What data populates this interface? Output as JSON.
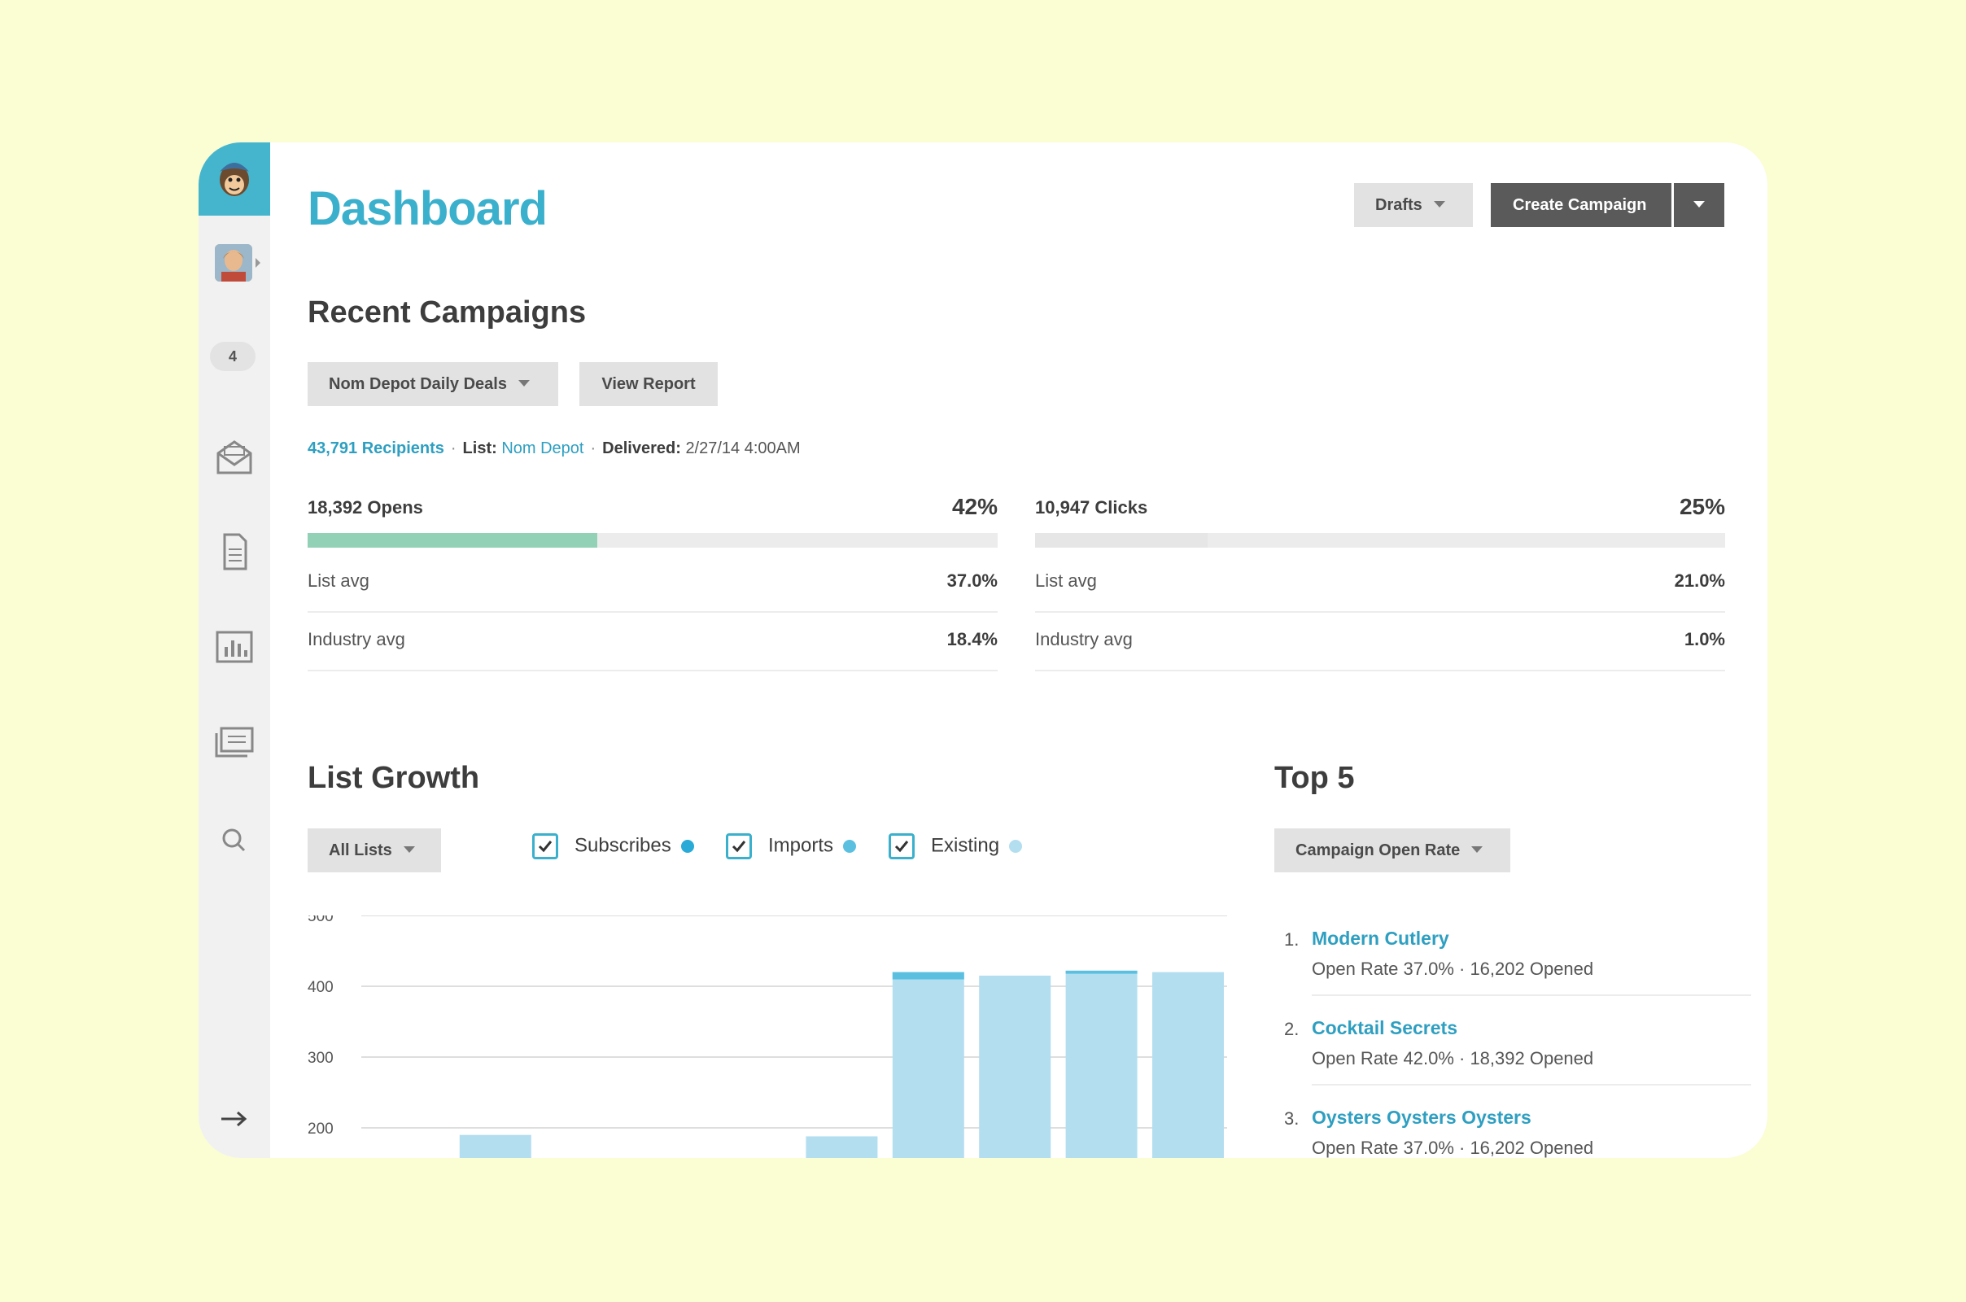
{
  "sidebar": {
    "badge_count": "4",
    "icons": [
      "monkey-logo",
      "avatar",
      "campaigns-icon",
      "templates-icon",
      "reports-icon",
      "lists-icon",
      "search-icon",
      "collapse-arrow-icon"
    ]
  },
  "header": {
    "title": "Dashboard",
    "drafts_label": "Drafts",
    "create_label": "Create Campaign"
  },
  "recent": {
    "heading": "Recent Campaigns",
    "campaign_select": "Nom Depot Daily Deals",
    "view_report": "View Report",
    "recipients": "43,791 Recipients",
    "list_label": "List:",
    "list_value": "Nom Depot",
    "delivered_label": "Delivered:",
    "delivered_value": "2/27/14 4:00AM",
    "opens": {
      "label": "18,392 Opens",
      "pct": "42%",
      "fill": 0.42,
      "list_avg_label": "List avg",
      "list_avg": "37.0%",
      "industry_avg_label": "Industry avg",
      "industry_avg": "18.4%"
    },
    "clicks": {
      "label": "10,947 Clicks",
      "pct": "25%",
      "fill": 0.25,
      "list_avg_label": "List avg",
      "list_avg": "21.0%",
      "industry_avg_label": "Industry avg",
      "industry_avg": "1.0%"
    }
  },
  "growth": {
    "heading": "List Growth",
    "list_select": "All Lists",
    "checks": [
      {
        "label": "Subscribes",
        "color": "#2aaad6"
      },
      {
        "label": "Imports",
        "color": "#5bc0e0"
      },
      {
        "label": "Existing",
        "color": "#b3def0"
      }
    ]
  },
  "chart_data": {
    "type": "bar",
    "yticks": [
      500,
      400,
      300,
      200
    ],
    "ylim": [
      200,
      500
    ],
    "values": [
      null,
      190,
      null,
      null,
      null,
      188,
      420,
      415,
      422,
      420
    ],
    "top_segments": [
      0,
      0,
      0,
      0,
      0,
      0,
      8,
      0,
      2,
      0
    ],
    "colors": {
      "existing": "#b3def0",
      "subscribes": "#5bc0e0"
    }
  },
  "top5": {
    "heading": "Top 5",
    "select": "Campaign Open Rate",
    "items": [
      {
        "num": "1.",
        "name": "Modern Cutlery",
        "sub": "Open Rate 37.0% · 16,202 Opened"
      },
      {
        "num": "2.",
        "name": "Cocktail Secrets",
        "sub": "Open Rate 42.0% · 18,392 Opened"
      },
      {
        "num": "3.",
        "name": "Oysters Oysters Oysters",
        "sub": "Open Rate 37.0% · 16,202 Opened"
      }
    ]
  }
}
